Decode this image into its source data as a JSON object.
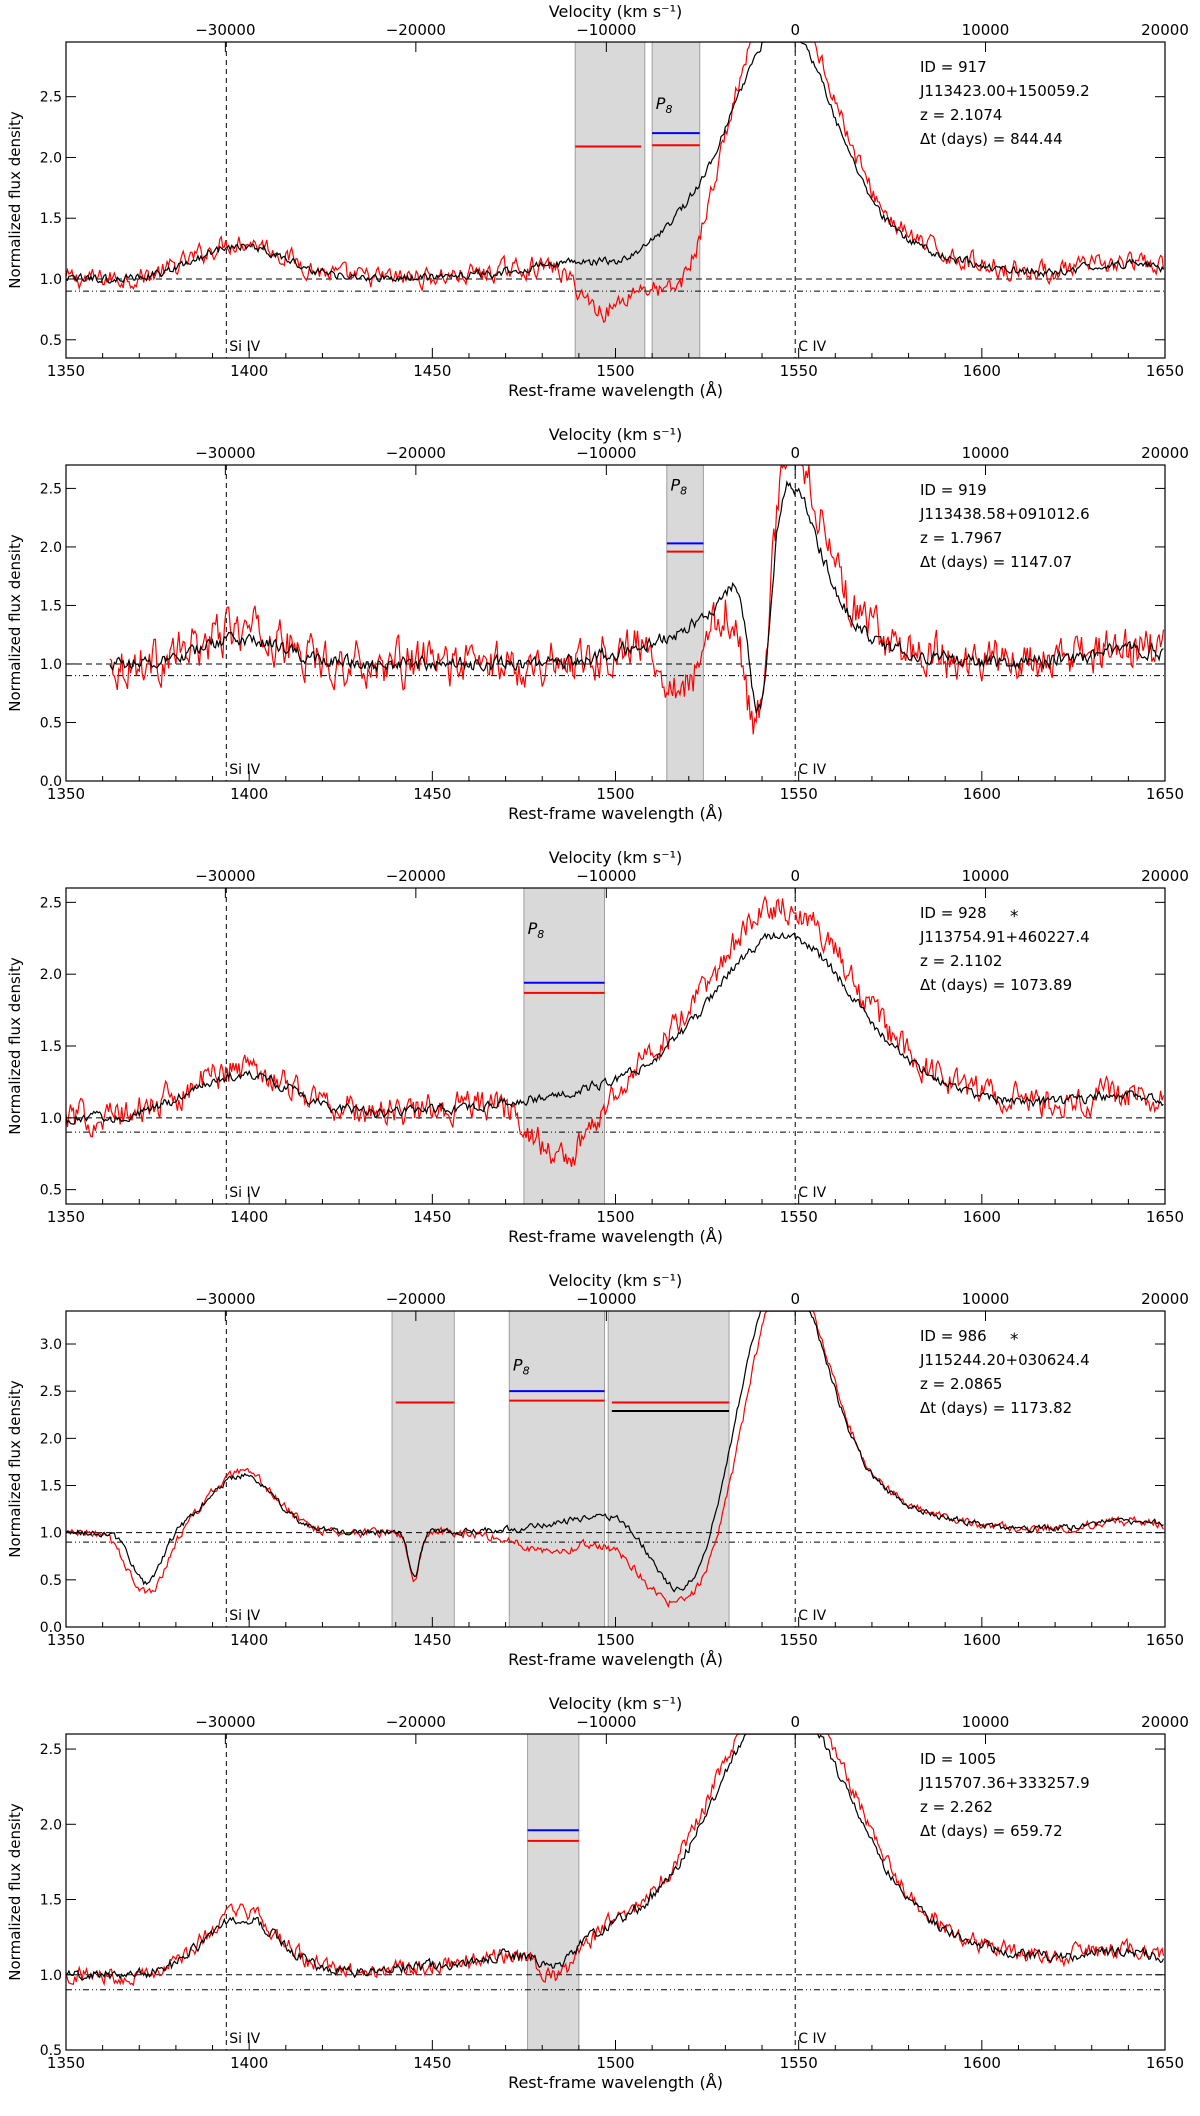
{
  "figure": {
    "xlabel": "Rest-frame wavelength (Å)",
    "top_axis_label": "Velocity (km s⁻¹)",
    "ylabel": "Normalized flux density",
    "line_labels": [
      "Si IV",
      "C IV"
    ],
    "line_wavelengths": [
      1393.76,
      1549.06
    ],
    "xlim": [
      1350,
      1650
    ],
    "xticks": [
      1350,
      1400,
      1450,
      1500,
      1550,
      1600,
      1650
    ],
    "velocity_ticks": [
      {
        "label": "−30000",
        "wavelength": 1393.5
      },
      {
        "label": "−20000",
        "wavelength": 1445.5
      },
      {
        "label": "−10000",
        "wavelength": 1497.5
      },
      {
        "label": "0",
        "wavelength": 1549.06
      },
      {
        "label": "10000",
        "wavelength": 1601.0
      },
      {
        "label": "20000",
        "wavelength": 1653.0
      }
    ],
    "continuum_level": 1.0,
    "threshold_level": 0.9,
    "colors": {
      "spectrum_early": "#000000",
      "spectrum_late": "#ff0000",
      "shade": "#d9d9d9",
      "marker_blue": "#0000ff",
      "marker_red": "#ff0000",
      "marker_black": "#000000"
    }
  },
  "chart_data": [
    {
      "type": "line",
      "info": [
        "ID = 917",
        "J113423.00+150059.2",
        "z = 2.1074",
        "Δt (days) = 844.44"
      ],
      "star": false,
      "p8_label": "P8",
      "ylim": [
        0.35,
        2.95
      ],
      "yticks": [
        0.5,
        1.0,
        1.5,
        2.0,
        2.5
      ],
      "xstart": 1350,
      "shaded_regions": [
        [
          1489,
          1508
        ],
        [
          1510,
          1523
        ]
      ],
      "markers": [
        {
          "x": [
            1489,
            1507
          ],
          "y": 2.09,
          "color": "red"
        },
        {
          "x": [
            1510,
            1523
          ],
          "y": 2.2,
          "color": "blue"
        },
        {
          "x": [
            1510,
            1523
          ],
          "y": 2.1,
          "color": "red"
        }
      ],
      "p8_at": [
        1511,
        2.4
      ],
      "emission": {
        "c4_amp": 1.55,
        "c4_sig": 13,
        "si4_amp": 0.28,
        "si4_sig": 12
      },
      "late_emission_scale": 1.12,
      "troughs_early": [
        {
          "c": 1502,
          "d": 0.1,
          "w": 8
        }
      ],
      "troughs_late": [
        {
          "c": 1497,
          "d": 0.4,
          "w": 7
        },
        {
          "c": 1516,
          "d": 0.42,
          "w": 8
        }
      ],
      "noise": {
        "early": 0.03,
        "late": 0.07
      }
    },
    {
      "type": "line",
      "info": [
        "ID = 919",
        "J113438.58+091012.6",
        "z = 1.7967",
        "Δt (days) = 1147.07"
      ],
      "star": false,
      "p8_label": "P8",
      "ylim": [
        0.0,
        2.7
      ],
      "yticks": [
        0.0,
        0.5,
        1.0,
        1.5,
        2.0,
        2.5
      ],
      "xstart": 1362,
      "shaded_regions": [
        [
          1514,
          1524
        ]
      ],
      "markers": [
        {
          "x": [
            1514,
            1524
          ],
          "y": 2.03,
          "color": "blue"
        },
        {
          "x": [
            1514,
            1524
          ],
          "y": 1.96,
          "color": "red"
        }
      ],
      "p8_at": [
        1515,
        2.48
      ],
      "emission": {
        "c4_amp": 1.2,
        "c4_sig": 9,
        "si4_amp": 0.22,
        "si4_sig": 11
      },
      "late_emission_scale": 1.28,
      "troughs_early": [
        {
          "c": 1539,
          "d": 0.75,
          "w": 3
        }
      ],
      "troughs_late": [
        {
          "c": 1519,
          "d": 0.4,
          "w": 6
        },
        {
          "c": 1538,
          "d": 0.8,
          "w": 4
        }
      ],
      "noise": {
        "early": 0.05,
        "late": 0.16
      }
    },
    {
      "type": "line",
      "info": [
        "ID = 928",
        "J113754.91+460227.4",
        "z = 2.1102",
        "Δt (days) = 1073.89"
      ],
      "star": true,
      "p8_label": "P8",
      "ylim": [
        0.4,
        2.6
      ],
      "yticks": [
        0.5,
        1.0,
        1.5,
        2.0,
        2.5
      ],
      "xstart": 1350,
      "shaded_regions": [
        [
          1475,
          1497
        ]
      ],
      "markers": [
        {
          "x": [
            1475,
            1497
          ],
          "y": 1.94,
          "color": "blue"
        },
        {
          "x": [
            1475,
            1497
          ],
          "y": 1.87,
          "color": "red"
        }
      ],
      "p8_at": [
        1476,
        2.28
      ],
      "emission": {
        "c4_amp": 0.95,
        "c4_sig": 18,
        "si4_amp": 0.3,
        "si4_sig": 14
      },
      "late_emission_scale": 1.15,
      "troughs_early": [],
      "troughs_late": [
        {
          "c": 1486,
          "d": 0.4,
          "w": 8
        }
      ],
      "noise": {
        "early": 0.03,
        "late": 0.09
      }
    },
    {
      "type": "line",
      "info": [
        "ID = 986",
        "J115244.20+030624.4",
        "z = 2.0865",
        "Δt (days) = 1173.82"
      ],
      "star": true,
      "p8_label": "P8",
      "ylim": [
        0.0,
        3.35
      ],
      "yticks": [
        0.0,
        0.5,
        1.0,
        1.5,
        2.0,
        2.5,
        3.0
      ],
      "xstart": 1350,
      "shaded_regions": [
        [
          1439,
          1456
        ],
        [
          1471,
          1497
        ],
        [
          1498,
          1531
        ]
      ],
      "markers": [
        {
          "x": [
            1440,
            1456
          ],
          "y": 2.38,
          "color": "red"
        },
        {
          "x": [
            1471,
            1497
          ],
          "y": 2.5,
          "color": "blue"
        },
        {
          "x": [
            1471,
            1497
          ],
          "y": 2.4,
          "color": "red"
        },
        {
          "x": [
            1499,
            1531
          ],
          "y": 2.38,
          "color": "red"
        },
        {
          "x": [
            1499,
            1531
          ],
          "y": 2.29,
          "color": "black"
        }
      ],
      "p8_at": [
        1472,
        2.72
      ],
      "emission": {
        "c4_amp": 2.1,
        "c4_sig": 11,
        "si4_amp": 0.6,
        "si4_sig": 9
      },
      "late_emission_scale": 1.05,
      "troughs_early": [
        {
          "c": 1372,
          "d": 0.55,
          "w": 4
        },
        {
          "c": 1445,
          "d": 0.5,
          "w": 1.5
        },
        {
          "c": 1518,
          "d": 0.75,
          "w": 9
        }
      ],
      "troughs_late": [
        {
          "c": 1372,
          "d": 0.65,
          "w": 5
        },
        {
          "c": 1445,
          "d": 0.55,
          "w": 1.5
        },
        {
          "c": 1484,
          "d": 0.25,
          "w": 11
        },
        {
          "c": 1517,
          "d": 0.85,
          "w": 12
        }
      ],
      "noise": {
        "early": 0.03,
        "late": 0.04
      }
    },
    {
      "type": "line",
      "info": [
        "ID = 1005",
        "J115707.36+333257.9",
        "z = 2.262",
        "Δt (days) = 659.72"
      ],
      "star": false,
      "p8_label": "P8",
      "ylim": [
        0.5,
        2.6
      ],
      "yticks": [
        0.5,
        1.0,
        1.5,
        2.0,
        2.5
      ],
      "xstart": 1350,
      "shaded_regions": [
        [
          1476,
          1490
        ]
      ],
      "markers": [
        {
          "x": [
            1476,
            1490
          ],
          "y": 1.96,
          "color": "blue"
        },
        {
          "x": [
            1476,
            1490
          ],
          "y": 1.89,
          "color": "red"
        }
      ],
      "p8_at": null,
      "emission": {
        "c4_amp": 1.35,
        "c4_sig": 17,
        "si4_amp": 0.38,
        "si4_sig": 10
      },
      "late_emission_scale": 1.08,
      "troughs_early": [
        {
          "c": 1484,
          "d": 0.12,
          "w": 5
        }
      ],
      "troughs_late": [
        {
          "c": 1484,
          "d": 0.2,
          "w": 6
        }
      ],
      "noise": {
        "early": 0.03,
        "late": 0.05
      }
    }
  ]
}
